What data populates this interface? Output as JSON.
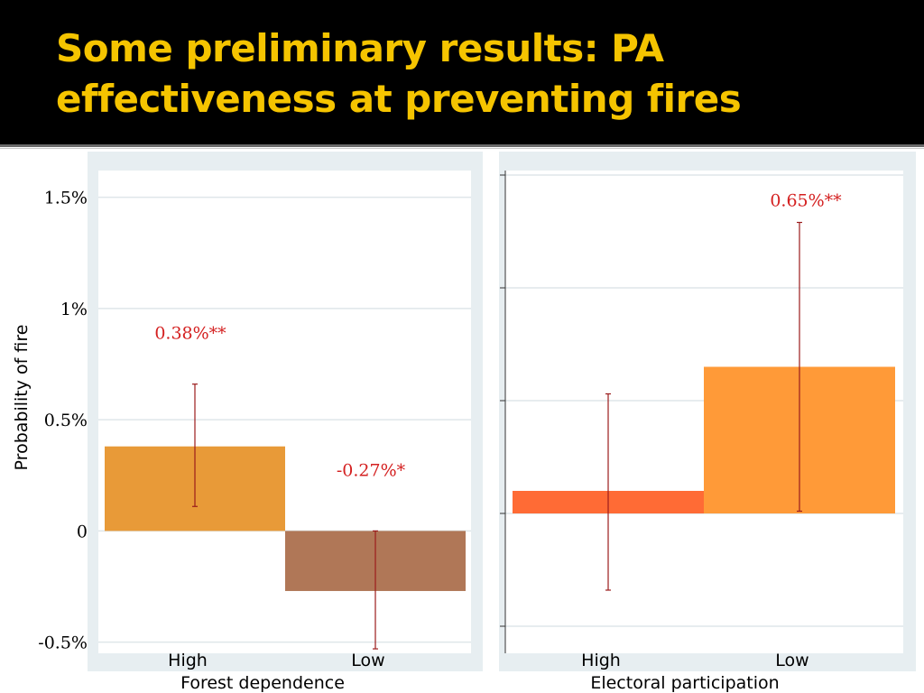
{
  "slide": {
    "title_line1": "Some preliminary results: PA",
    "title_line2": "effectiveness at preventing fires"
  },
  "colors": {
    "title": "#f5c400",
    "panel_bg": "#e7eef1",
    "annotation": "#d42020",
    "error_bar": "#9b1c1c"
  },
  "chart_data": [
    {
      "type": "bar",
      "xlabel": "Forest dependence",
      "ylabel": "Probability of fire",
      "ylim": [
        -0.55,
        1.62
      ],
      "yticks": [
        -0.5,
        0,
        0.5,
        1,
        1.5
      ],
      "ytick_labels": [
        "-0.5%",
        "0",
        "0.5%",
        "1%",
        "1.5%"
      ],
      "grid": true,
      "categories": [
        "High",
        "Low"
      ],
      "values": [
        0.38,
        -0.27
      ],
      "ci": [
        [
          0.11,
          0.66
        ],
        [
          -0.53,
          0.0
        ]
      ],
      "bar_colors": [
        "#e89a38",
        "#b07757"
      ],
      "labels": [
        "0.38%**",
        "-0.27%*"
      ]
    },
    {
      "type": "bar",
      "xlabel": "Electoral participation",
      "ylim": [
        -0.62,
        1.52
      ],
      "yticks": [
        -0.5,
        0,
        0.5,
        1,
        1.5
      ],
      "grid": true,
      "categories": [
        "High",
        "Low"
      ],
      "values": [
        0.1,
        0.65
      ],
      "ci": [
        [
          -0.34,
          0.53
        ],
        [
          0.01,
          1.29
        ]
      ],
      "bar_colors": [
        "#ff6b35",
        "#ff9a38"
      ],
      "labels": [
        "",
        "0.65%**"
      ]
    }
  ]
}
